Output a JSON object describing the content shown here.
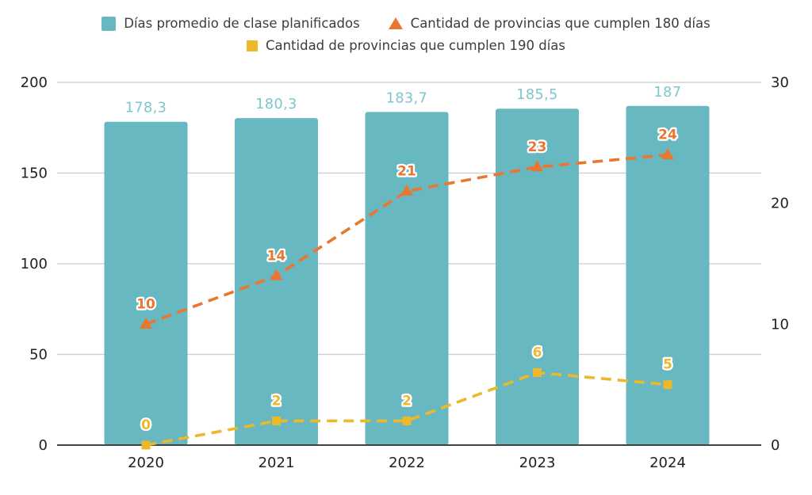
{
  "chart_data": {
    "type": "combo-bar-line",
    "categories": [
      "2020",
      "2021",
      "2022",
      "2023",
      "2024"
    ],
    "series": [
      {
        "name": "Días promedio de clase planificados",
        "type": "bar",
        "axis": "left",
        "color": "#68b8c2",
        "label_color": "#7ec4cd",
        "values": [
          178.3,
          180.3,
          183.7,
          185.5,
          187
        ],
        "labels": [
          "178,3",
          "180,3",
          "183,7",
          "185,5",
          "187"
        ]
      },
      {
        "name": "Cantidad de provincias que cumplen 180 días",
        "type": "line",
        "marker": "triangle",
        "axis": "right",
        "color": "#e9772f",
        "values": [
          10,
          14,
          21,
          23,
          24
        ],
        "labels": [
          "10",
          "14",
          "21",
          "23",
          "24"
        ]
      },
      {
        "name": "Cantidad de provincias que cumplen 190 días",
        "type": "line",
        "marker": "square",
        "axis": "right",
        "color": "#edb829",
        "values": [
          0,
          2,
          2,
          6,
          5
        ],
        "labels": [
          "0",
          "2",
          "2",
          "6",
          "5"
        ]
      }
    ],
    "left_axis": {
      "range": [
        0,
        200
      ],
      "ticks": [
        0,
        50,
        100,
        150,
        200
      ]
    },
    "right_axis": {
      "range": [
        0,
        30
      ],
      "ticks": [
        0,
        10,
        20,
        30
      ]
    },
    "grid": "horizontal",
    "legend_position": "top",
    "colors": {
      "gridline": "#cccccc",
      "axis_line": "#424242",
      "axis_text": "#212121"
    }
  }
}
